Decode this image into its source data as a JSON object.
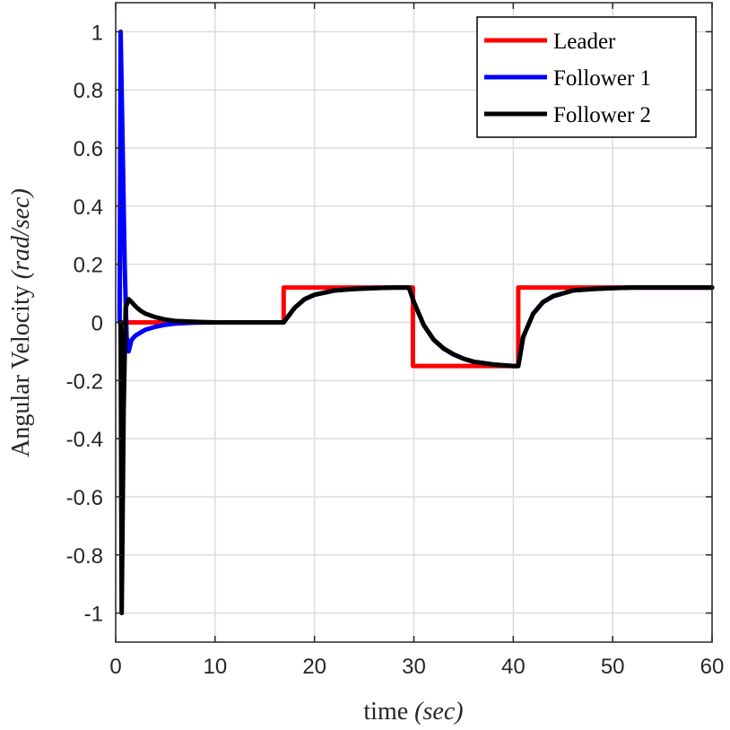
{
  "chart_data": {
    "type": "line",
    "title": "",
    "xlabel_plain": "time ",
    "xlabel_italic": "(sec)",
    "ylabel_plain": "Angular Velocity ",
    "ylabel_italic": "(rad/sec)",
    "xlim": [
      0,
      60
    ],
    "ylim": [
      -1.1,
      1.1
    ],
    "grid": true,
    "legend_position": "top-right",
    "x_ticks": [
      0,
      10,
      20,
      30,
      40,
      50,
      60
    ],
    "x_tick_labels": [
      "0",
      "10",
      "20",
      "30",
      "40",
      "50",
      "60"
    ],
    "y_ticks": [
      1,
      0.8,
      0.6,
      0.4,
      0.2,
      0,
      -0.2,
      -0.4,
      -0.6,
      -0.8,
      -1
    ],
    "y_tick_labels": [
      "1",
      "0.8",
      "0.6",
      "0.4",
      "0.2",
      "0",
      "-0.2",
      "-0.4",
      "-0.6",
      "-0.8",
      "-1"
    ],
    "series": [
      {
        "name": "Leader",
        "color": "#ff0000",
        "x": [
          0.5,
          0.5,
          16.9,
          16.9,
          29.9,
          29.9,
          40.5,
          40.5,
          60
        ],
        "y": [
          0,
          0,
          0,
          0.12,
          0.12,
          -0.15,
          -0.15,
          0.12,
          0.12
        ]
      },
      {
        "name": "Follower 1",
        "color": "#0000ff",
        "x": [
          0.4,
          0.5,
          0.7,
          0.9,
          1.1,
          1.3,
          1.6,
          2,
          2.5,
          3,
          4,
          5,
          6,
          8,
          10,
          12,
          14,
          16.9,
          18,
          19,
          20,
          22,
          24,
          26,
          28,
          29.5,
          30,
          31,
          32,
          33,
          34,
          35,
          36,
          38,
          40,
          40.5,
          41,
          42,
          43,
          44,
          45,
          46,
          48,
          50,
          52,
          54,
          56,
          58,
          60
        ],
        "y": [
          0,
          1,
          0.6,
          0.2,
          -0.05,
          -0.1,
          -0.06,
          -0.045,
          -0.035,
          -0.025,
          -0.015,
          -0.008,
          -0.004,
          -0.001,
          0,
          0,
          0,
          0,
          0.05,
          0.08,
          0.095,
          0.11,
          0.115,
          0.118,
          0.12,
          0.12,
          0.07,
          -0.01,
          -0.06,
          -0.09,
          -0.11,
          -0.125,
          -0.135,
          -0.145,
          -0.15,
          -0.15,
          -0.05,
          0.03,
          0.07,
          0.09,
          0.1,
          0.11,
          0.115,
          0.118,
          0.12,
          0.12,
          0.12,
          0.12,
          0.12
        ]
      },
      {
        "name": "Follower 2",
        "color": "#000000",
        "x": [
          0.5,
          0.6,
          0.8,
          1,
          1.3,
          1.6,
          2,
          2.5,
          3,
          4,
          5,
          6,
          8,
          10,
          12,
          14,
          16.9,
          18,
          19,
          20,
          22,
          24,
          26,
          28,
          29.5,
          30,
          31,
          32,
          33,
          34,
          35,
          36,
          38,
          40,
          40.5,
          41,
          42,
          43,
          44,
          45,
          46,
          48,
          50,
          52,
          54,
          56,
          58,
          60
        ],
        "y": [
          0,
          -1,
          -0.3,
          0.05,
          0.08,
          0.07,
          0.055,
          0.04,
          0.03,
          0.018,
          0.01,
          0.005,
          0.002,
          0,
          0,
          0,
          0,
          0.05,
          0.08,
          0.095,
          0.11,
          0.115,
          0.118,
          0.12,
          0.12,
          0.07,
          -0.01,
          -0.06,
          -0.09,
          -0.11,
          -0.125,
          -0.135,
          -0.145,
          -0.15,
          -0.15,
          -0.05,
          0.03,
          0.07,
          0.09,
          0.1,
          0.11,
          0.115,
          0.118,
          0.12,
          0.12,
          0.12,
          0.12,
          0.12
        ]
      }
    ]
  }
}
